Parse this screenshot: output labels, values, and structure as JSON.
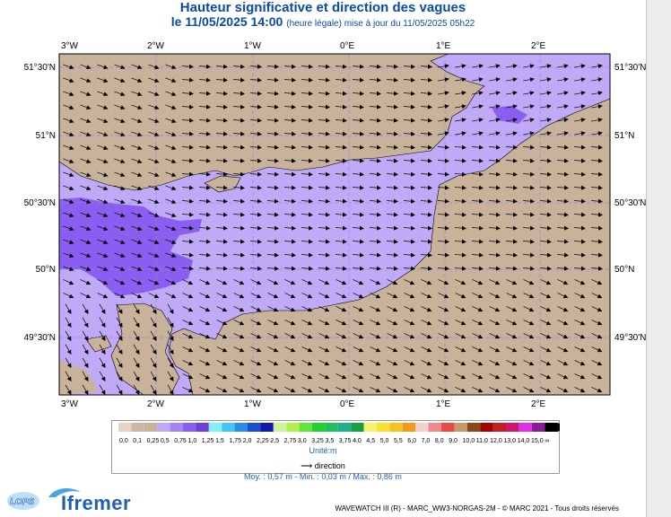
{
  "header": {
    "title": "Hauteur significative et direction des vagues",
    "subtitle_main": "le 11/05/2025 14:00",
    "subtitle_note": "(heure légale) mise à jour du 11/05/2025 05h22"
  },
  "map": {
    "lon_labels": [
      "3°W",
      "2°W",
      "1°W",
      "0°E",
      "1°E",
      "2°E"
    ],
    "lat_labels": [
      "51°30'N",
      "51°N",
      "50°30'N",
      "50°N",
      "49°30'N"
    ],
    "colors": {
      "land": "#c8b29a",
      "water_low": "#c0aaf8",
      "water_high": "#8a5ef0",
      "grid": "#8a8ae6"
    }
  },
  "legend": {
    "swatches": [
      "#e7d3c5",
      "#cdb8a6",
      "#c8b29a",
      "#c0aaf8",
      "#a782f5",
      "#8a5ef0",
      "#6c3fd8",
      "#7ff0f4",
      "#3ec6f5",
      "#2a8ee8",
      "#1a4fd0",
      "#0f1ab0",
      "#cbf59a",
      "#b0f04a",
      "#5ee63a",
      "#22d030",
      "#20c060",
      "#20b090",
      "#18a040",
      "#f4f36a",
      "#f7e22e",
      "#f5c21e",
      "#f39a1a",
      "#f4d0d0",
      "#f08a8a",
      "#e84848",
      "#c59a6a",
      "#8a4a18",
      "#a80000",
      "#c02020",
      "#d0166a",
      "#e22ee8",
      "#8e1a9a",
      "#000000"
    ],
    "labels": [
      "0,0",
      "0,1",
      "0,25",
      "0,5",
      "0,75",
      "1,0",
      "1,25",
      "1,5",
      "1,75",
      "2,0",
      "2,25",
      "2,5",
      "2,75",
      "3,0",
      "3,25",
      "3,5",
      "3,75",
      "4,0",
      "4,5",
      "5,0",
      "5,5",
      "6,0",
      "7,0",
      "8,0",
      "9,0",
      "10,0",
      "11,0",
      "12,0",
      "13,0",
      "14,0",
      "15,0",
      "∞"
    ],
    "unit": "Unité:m",
    "direction_label": "direction",
    "stats": "Moy. : 0,57 m   -   Min. : 0,03 m / Max. : 0,86 m"
  },
  "footer": {
    "credit": "WAVEWATCH III (R) - MARC_WW3-NORGAS-2M - © MARC 2021 - Tous droits réservés",
    "logo_lops": "LOPS",
    "logo_ifremer": "Ifremer"
  }
}
